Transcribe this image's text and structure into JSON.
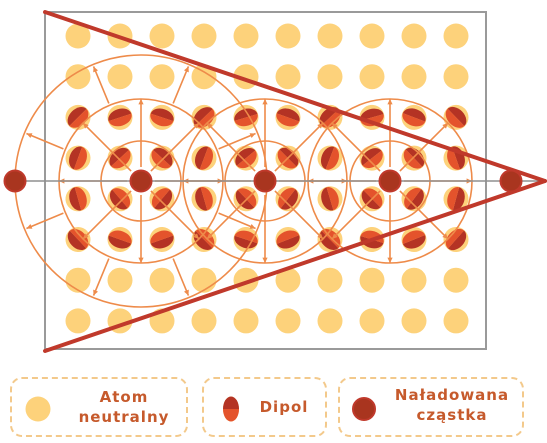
{
  "colors": {
    "neutral_atom": "#fdd27b",
    "dipol_dark": "#b43324",
    "field_lines": "#ee8b4a",
    "cone": "#c0392b",
    "charged_particle": "#a9351f",
    "frame": "#9a9a9a",
    "legend_text": "#c65a2c",
    "legend_border": "#f3c98b"
  },
  "icons": {
    "neutral_atom": "yellow-circle-icon",
    "dipol": "half-red-circle-icon",
    "charged_particle": "dark-red-circle-icon"
  },
  "legend": {
    "atom": {
      "line1": "Atom",
      "line2": "neutralny"
    },
    "dipol": {
      "label": "Dipol"
    },
    "charged": {
      "line1": "Naładowana",
      "line2": "cząstka"
    }
  }
}
